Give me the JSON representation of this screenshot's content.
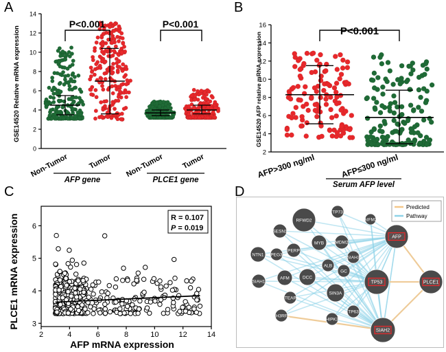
{
  "figure": {
    "panel_labels": [
      "A",
      "B",
      "C",
      "D"
    ]
  },
  "panelA": {
    "ylabel": "GSE14520 Relative mRNA expression",
    "yticks": [
      "0",
      "2",
      "4",
      "6",
      "8",
      "10",
      "12",
      "14"
    ],
    "groups": [
      "Non-Tumor",
      "Tumor",
      "Non-Tumor",
      "Tumor"
    ],
    "gene_labels": [
      "AFP gene",
      "PLCE1 gene"
    ],
    "pvalues": [
      "P<0.001",
      "P<0.001"
    ]
  },
  "panelB": {
    "ylabel": "GSE14520 AFP relative mRNA expression",
    "yticks": [
      "2",
      "4",
      "6",
      "8",
      "10",
      "12",
      "14",
      "16"
    ],
    "groups": [
      "AFP>300 ng/ml",
      "AFP≤300 ng/ml"
    ],
    "group_label": "Serum AFP level",
    "pvalue": "P<0.001"
  },
  "panelC": {
    "xlabel": "AFP mRNA expression",
    "ylabel": "PLCE1 mRNA expression",
    "xticks": [
      "2",
      "4",
      "6",
      "8",
      "10",
      "12",
      "14"
    ],
    "yticks": [
      "3",
      "4",
      "5",
      "6"
    ],
    "stats_r": "R = 0.107",
    "stats_p_label": "P",
    "stats_p_value": " = 0.019"
  },
  "panelD": {
    "legend": [
      "Predicted",
      "Pathway"
    ],
    "nodes": [
      "RFWD2",
      "TP73",
      "AIFM2",
      "SESN1",
      "MDM2",
      "NTN1",
      "PEG3",
      "PERP",
      "MYB",
      "SIAH3",
      "AFP",
      "ALB",
      "GC",
      "SIAH1",
      "AFM",
      "DCC",
      "TP53",
      "PLCE1",
      "STEAP3",
      "SIN3A",
      "SH3RF1",
      "TP63",
      "HIPK3",
      "SIAH2"
    ]
  },
  "colors": {
    "red": "#e8282b",
    "green": "#1f6b36",
    "predicted": "#f5c78a",
    "pathway": "#8ed3e8",
    "node": "#4a4a4a"
  },
  "chart_data": [
    {
      "type": "scatter",
      "title": "A",
      "ylabel": "GSE14520 Relative mRNA expression",
      "ylim": [
        0,
        14
      ],
      "categories": [
        "AFP Non-Tumor",
        "AFP Tumor",
        "PLCE1 Non-Tumor",
        "PLCE1 Tumor"
      ],
      "series": [
        {
          "name": "AFP Non-Tumor",
          "mean": 4.5,
          "sd_low": 3.5,
          "sd_high": 5.5,
          "range": [
            3.1,
            10.6
          ],
          "n": 220
        },
        {
          "name": "AFP Tumor",
          "mean": 7.0,
          "sd_low": 3.6,
          "sd_high": 10.4,
          "range": [
            3.0,
            13.1
          ],
          "n": 225
        },
        {
          "name": "PLCE1 Non-Tumor",
          "mean": 3.7,
          "sd_low": 3.4,
          "sd_high": 4.0,
          "range": [
            3.2,
            4.9
          ],
          "n": 220
        },
        {
          "name": "PLCE1 Tumor",
          "mean": 4.0,
          "sd_low": 3.6,
          "sd_high": 4.5,
          "range": [
            3.2,
            6.1
          ],
          "n": 225
        }
      ]
    },
    {
      "type": "scatter",
      "title": "B",
      "ylabel": "GSE14520 AFP relative mRNA expression",
      "ylim": [
        2,
        16
      ],
      "categories": [
        "AFP>300 ng/ml",
        "AFP≤300 ng/ml"
      ],
      "series": [
        {
          "name": "AFP>300 ng/ml",
          "mean": 8.3,
          "sd_low": 5.1,
          "sd_high": 11.5,
          "range": [
            3.5,
            13.1
          ],
          "n": 130
        },
        {
          "name": "AFP≤300 ng/ml",
          "mean": 5.8,
          "sd_low": 2.9,
          "sd_high": 8.8,
          "range": [
            2.8,
            12.7
          ],
          "n": 170
        }
      ]
    },
    {
      "type": "scatter",
      "title": "C",
      "xlabel": "AFP mRNA expression",
      "ylabel": "PLCE1 mRNA expression",
      "xlim": [
        2,
        14
      ],
      "ylim": [
        2.9,
        6.6
      ],
      "r": 0.107,
      "p": 0.019,
      "fit_line": {
        "x": [
          3.0,
          13.2
        ],
        "y": [
          3.65,
          3.85
        ]
      },
      "n": 445
    }
  ]
}
